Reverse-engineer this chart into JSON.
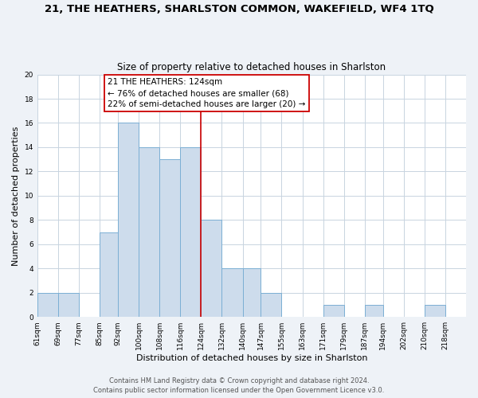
{
  "title": "21, THE HEATHERS, SHARLSTON COMMON, WAKEFIELD, WF4 1TQ",
  "subtitle": "Size of property relative to detached houses in Sharlston",
  "xlabel": "Distribution of detached houses by size in Sharlston",
  "ylabel": "Number of detached properties",
  "bar_color": "#cddcec",
  "bar_edge_color": "#7bafd4",
  "grid_color": "#c8d4e0",
  "vline_color": "#cc0000",
  "vline_x": 124,
  "annotation_line1": "21 THE HEATHERS: 124sqm",
  "annotation_line2": "← 76% of detached houses are smaller (68)",
  "annotation_line3": "22% of semi-detached houses are larger (20) →",
  "annotation_box_color": "#ffffff",
  "annotation_box_edge": "#cc0000",
  "bin_edges": [
    61,
    69,
    77,
    85,
    92,
    100,
    108,
    116,
    124,
    132,
    140,
    147,
    155,
    163,
    171,
    179,
    187,
    194,
    202,
    210,
    218
  ],
  "bar_heights": [
    2,
    2,
    0,
    7,
    16,
    14,
    13,
    14,
    8,
    4,
    4,
    2,
    0,
    0,
    1,
    0,
    1,
    0,
    0,
    1
  ],
  "ylim": [
    0,
    20
  ],
  "yticks": [
    0,
    2,
    4,
    6,
    8,
    10,
    12,
    14,
    16,
    18,
    20
  ],
  "xtick_labels": [
    "61sqm",
    "69sqm",
    "77sqm",
    "85sqm",
    "92sqm",
    "100sqm",
    "108sqm",
    "116sqm",
    "124sqm",
    "132sqm",
    "140sqm",
    "147sqm",
    "155sqm",
    "163sqm",
    "171sqm",
    "179sqm",
    "187sqm",
    "194sqm",
    "202sqm",
    "210sqm",
    "218sqm"
  ],
  "footer_line1": "Contains HM Land Registry data © Crown copyright and database right 2024.",
  "footer_line2": "Contains public sector information licensed under the Open Government Licence v3.0.",
  "background_color": "#eef2f7",
  "plot_background_color": "#ffffff",
  "title_fontsize": 9.5,
  "subtitle_fontsize": 8.5,
  "xlabel_fontsize": 8,
  "ylabel_fontsize": 8,
  "tick_fontsize": 6.5,
  "annotation_fontsize": 7.5,
  "footer_fontsize": 6
}
